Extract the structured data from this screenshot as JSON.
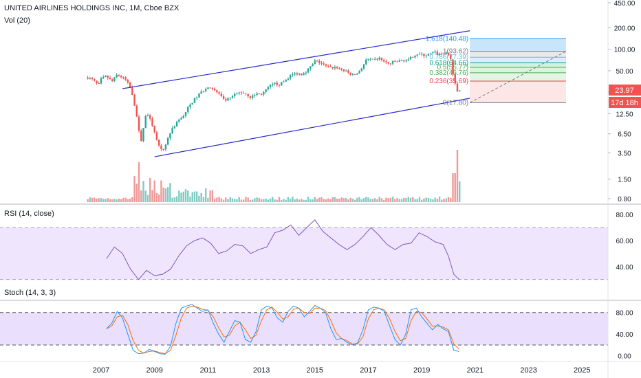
{
  "header": {
    "symbol_title": "UNITED AIRLINES HOLDINGS INC, 1M, Cboe BZX",
    "volume_label": "Vol (20)",
    "rsi_label": "RSI (14, close)",
    "stoch_label": "Stoch (14, 3, 3)"
  },
  "price_badges": {
    "last_price": "23.97",
    "countdown": "17d 18h"
  },
  "fib_labels": [
    {
      "text": "1.618(140.48)",
      "value": 140.48,
      "color": "#2196f3"
    },
    {
      "text": "1(93.62)",
      "value": 93.62,
      "color": "#787b86"
    },
    {
      "text": "0.786(77.39)",
      "value": 77.39,
      "color": "#64b5f6"
    },
    {
      "text": "0.618(64.66)",
      "value": 64.66,
      "color": "#089981"
    },
    {
      "text": "0.5(55.77)",
      "value": 55.77,
      "color": "#4caf50"
    },
    {
      "text": "0.382(46.76)",
      "value": 46.76,
      "color": "#4caf50"
    },
    {
      "text": "0.236(35.69)",
      "value": 35.69,
      "color": "#f23645"
    },
    {
      "text": "0(17.80)",
      "value": 17.8,
      "color": "#787b86"
    }
  ],
  "colors": {
    "up": "#26a69a",
    "down": "#ef5350",
    "vol_up": "#80cbc4",
    "vol_down": "#ef9a9a",
    "channel": "#2929c9",
    "rsi": "#7e57c2",
    "stoch_k": "#2196f3",
    "stoch_d": "#ff6d00",
    "band": "#e1d2fb",
    "badge_price": "#f05350"
  },
  "chart_data": [
    {
      "type": "candlestick",
      "title": "UNITED AIRLINES HOLDINGS INC, 1M, Cboe BZX",
      "y_scale": "log",
      "ylim": [
        0.7,
        450
      ],
      "xlim": [
        2006.1,
        2026.3
      ],
      "y_ticks": [
        "450.00",
        "200.00",
        "100.00",
        "50.00",
        "25.00",
        "12.50",
        "6.50",
        "3.50",
        "1.50",
        "0.80"
      ],
      "x_ticks": [
        "2007",
        "2009",
        "2011",
        "2013",
        "2015",
        "2017",
        "2019",
        "2021",
        "2023",
        "2025"
      ],
      "price_path": [
        [
          2006.5,
          40
        ],
        [
          2006.7,
          37
        ],
        [
          2006.9,
          31
        ],
        [
          2007.0,
          38
        ],
        [
          2007.2,
          42
        ],
        [
          2007.4,
          35
        ],
        [
          2007.6,
          44
        ],
        [
          2007.8,
          40
        ],
        [
          2007.95,
          36
        ],
        [
          2008.1,
          28
        ],
        [
          2008.2,
          20
        ],
        [
          2008.3,
          14
        ],
        [
          2008.4,
          8
        ],
        [
          2008.5,
          5
        ],
        [
          2008.6,
          9
        ],
        [
          2008.7,
          13
        ],
        [
          2008.8,
          11
        ],
        [
          2008.9,
          9
        ],
        [
          2009.0,
          7
        ],
        [
          2009.1,
          5
        ],
        [
          2009.2,
          4
        ],
        [
          2009.3,
          3.7
        ],
        [
          2009.45,
          5
        ],
        [
          2009.6,
          7
        ],
        [
          2009.75,
          8.5
        ],
        [
          2009.9,
          10
        ],
        [
          2010.1,
          12
        ],
        [
          2010.3,
          16
        ],
        [
          2010.5,
          20
        ],
        [
          2010.7,
          24
        ],
        [
          2010.9,
          28
        ],
        [
          2011.0,
          30
        ],
        [
          2011.2,
          27
        ],
        [
          2011.4,
          24
        ],
        [
          2011.6,
          19
        ],
        [
          2011.8,
          20
        ],
        [
          2012.0,
          23
        ],
        [
          2012.2,
          25
        ],
        [
          2012.4,
          24
        ],
        [
          2012.6,
          21
        ],
        [
          2012.8,
          24
        ],
        [
          2012.95,
          23
        ],
        [
          2013.1,
          25
        ],
        [
          2013.3,
          30
        ],
        [
          2013.5,
          33
        ],
        [
          2013.7,
          32
        ],
        [
          2013.9,
          37
        ],
        [
          2014.1,
          43
        ],
        [
          2014.3,
          46
        ],
        [
          2014.5,
          45
        ],
        [
          2014.7,
          50
        ],
        [
          2014.9,
          60
        ],
        [
          2015.0,
          68
        ],
        [
          2015.2,
          65
        ],
        [
          2015.4,
          58
        ],
        [
          2015.6,
          55
        ],
        [
          2015.8,
          56
        ],
        [
          2016.0,
          52
        ],
        [
          2016.2,
          48
        ],
        [
          2016.4,
          43
        ],
        [
          2016.6,
          46
        ],
        [
          2016.8,
          58
        ],
        [
          2016.9,
          70
        ],
        [
          2017.0,
          72
        ],
        [
          2017.2,
          70
        ],
        [
          2017.4,
          75
        ],
        [
          2017.5,
          72
        ],
        [
          2017.6,
          66
        ],
        [
          2017.8,
          62
        ],
        [
          2017.95,
          67
        ],
        [
          2018.1,
          67
        ],
        [
          2018.3,
          70
        ],
        [
          2018.5,
          70
        ],
        [
          2018.7,
          82
        ],
        [
          2018.8,
          86
        ],
        [
          2018.95,
          85
        ],
        [
          2019.1,
          82
        ],
        [
          2019.3,
          86
        ],
        [
          2019.5,
          90
        ],
        [
          2019.6,
          85
        ],
        [
          2019.8,
          88
        ],
        [
          2019.95,
          86
        ],
        [
          2020.05,
          80
        ],
        [
          2020.12,
          65
        ],
        [
          2020.18,
          40
        ],
        [
          2020.25,
          32
        ],
        [
          2020.3,
          24
        ],
        [
          2020.4,
          28
        ],
        [
          2020.45,
          24
        ]
      ],
      "channel_upper": [
        [
          2007.8,
          28
        ],
        [
          2020.8,
          182
        ]
      ],
      "channel_lower": [
        [
          2009.0,
          3.1
        ],
        [
          2020.8,
          20.5
        ]
      ],
      "fib_box_x": [
        2020.8,
        2024.4
      ],
      "fib_extension_line": [
        [
          2020.8,
          17.8
        ],
        [
          2024.4,
          93.62
        ]
      ]
    },
    {
      "type": "bar",
      "title": "Vol (20)",
      "description": "monthly volume bars; spikes in 2008 and 2020"
    },
    {
      "type": "line",
      "title": "RSI (14, close)",
      "ylim": [
        15,
        87
      ],
      "y_ticks": [
        "80.00",
        "60.00",
        "40.00"
      ],
      "band": [
        30,
        70
      ],
      "x": [
        2007.2,
        2007.5,
        2007.8,
        2008.1,
        2008.4,
        2008.7,
        2009.0,
        2009.3,
        2009.6,
        2009.9,
        2010.2,
        2010.5,
        2010.8,
        2011.1,
        2011.4,
        2011.7,
        2012.0,
        2012.3,
        2012.6,
        2012.9,
        2013.2,
        2013.5,
        2013.8,
        2014.1,
        2014.4,
        2014.7,
        2015.0,
        2015.3,
        2015.6,
        2015.9,
        2016.2,
        2016.5,
        2016.8,
        2017.1,
        2017.4,
        2017.7,
        2018.0,
        2018.3,
        2018.6,
        2018.9,
        2019.2,
        2019.5,
        2019.8,
        2020.0,
        2020.2,
        2020.4
      ],
      "values": [
        46,
        55,
        50,
        38,
        30,
        37,
        33,
        34,
        38,
        48,
        56,
        60,
        62,
        58,
        50,
        52,
        57,
        56,
        50,
        53,
        55,
        66,
        68,
        72,
        64,
        70,
        76,
        67,
        62,
        57,
        53,
        57,
        63,
        70,
        64,
        57,
        53,
        57,
        58,
        66,
        63,
        59,
        57,
        48,
        34,
        30
      ]
    },
    {
      "type": "line",
      "title": "Stoch (14, 3, 3)",
      "ylim": [
        -8,
        100
      ],
      "y_ticks": [
        "80.00",
        "40.00",
        "0.00"
      ],
      "band": [
        20,
        80
      ],
      "x": [
        2007.2,
        2007.4,
        2007.6,
        2007.8,
        2008.0,
        2008.2,
        2008.4,
        2008.6,
        2008.8,
        2009.0,
        2009.2,
        2009.4,
        2009.6,
        2009.8,
        2010.0,
        2010.2,
        2010.4,
        2010.6,
        2010.8,
        2011.0,
        2011.2,
        2011.4,
        2011.6,
        2011.8,
        2012.0,
        2012.2,
        2012.4,
        2012.6,
        2012.8,
        2013.0,
        2013.2,
        2013.4,
        2013.6,
        2013.8,
        2014.0,
        2014.2,
        2014.4,
        2014.6,
        2014.8,
        2015.0,
        2015.2,
        2015.4,
        2015.6,
        2015.8,
        2016.0,
        2016.2,
        2016.4,
        2016.6,
        2016.8,
        2017.0,
        2017.2,
        2017.4,
        2017.6,
        2017.8,
        2018.0,
        2018.2,
        2018.4,
        2018.6,
        2018.8,
        2019.0,
        2019.2,
        2019.4,
        2019.6,
        2019.8,
        2020.0,
        2020.2,
        2020.4
      ],
      "k": [
        50,
        60,
        82,
        70,
        40,
        10,
        4,
        5,
        12,
        8,
        4,
        3,
        18,
        60,
        88,
        92,
        95,
        88,
        82,
        85,
        60,
        40,
        25,
        45,
        65,
        62,
        30,
        25,
        45,
        85,
        92,
        88,
        70,
        62,
        82,
        92,
        88,
        72,
        82,
        93,
        88,
        80,
        50,
        30,
        32,
        25,
        20,
        24,
        48,
        85,
        90,
        88,
        82,
        55,
        30,
        20,
        40,
        85,
        88,
        72,
        60,
        48,
        58,
        50,
        45,
        10,
        8
      ],
      "d": [
        50,
        55,
        72,
        75,
        58,
        28,
        10,
        5,
        8,
        9,
        6,
        4,
        10,
        38,
        70,
        88,
        92,
        90,
        86,
        84,
        72,
        52,
        35,
        38,
        55,
        62,
        48,
        32,
        38,
        65,
        85,
        90,
        80,
        68,
        72,
        86,
        88,
        80,
        78,
        88,
        88,
        84,
        65,
        42,
        32,
        28,
        22,
        22,
        35,
        68,
        85,
        88,
        85,
        68,
        45,
        28,
        32,
        65,
        82,
        80,
        68,
        55,
        55,
        53,
        48,
        22,
        12
      ]
    }
  ]
}
